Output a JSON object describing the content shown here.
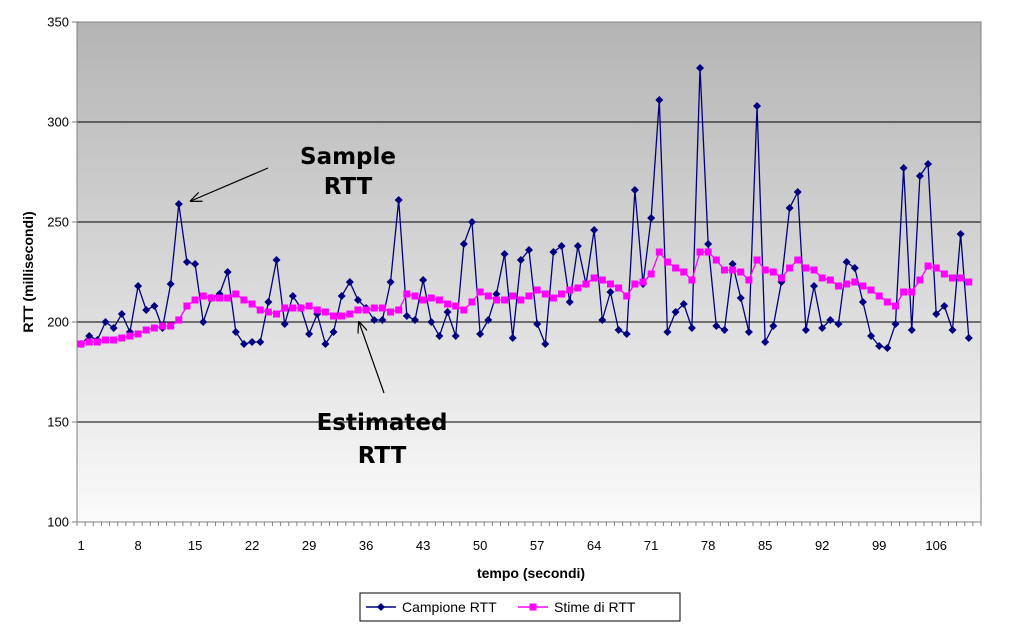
{
  "chart_data": {
    "type": "line",
    "xlabel": "tempo (secondi)",
    "ylabel": "RTT (millisecondi)",
    "ylim": [
      100,
      350
    ],
    "yticks": [
      100,
      150,
      200,
      250,
      300,
      350
    ],
    "xticks": [
      1,
      8,
      15,
      22,
      29,
      36,
      43,
      50,
      57,
      64,
      71,
      78,
      85,
      92,
      99,
      106
    ],
    "x_start": 1,
    "x_end": 111,
    "grid": "horizontal",
    "background": "gradient-gray",
    "legend_position": "bottom",
    "series": [
      {
        "name": "Campione RTT",
        "color": "#000080",
        "marker": "diamond",
        "values": [
          189,
          193,
          191,
          200,
          197,
          204,
          195,
          218,
          206,
          208,
          197,
          219,
          259,
          230,
          229,
          200,
          212,
          214,
          225,
          195,
          189,
          190,
          190,
          210,
          231,
          199,
          213,
          207,
          194,
          204,
          189,
          195,
          213,
          220,
          211,
          207,
          201,
          201,
          220,
          261,
          203,
          201,
          221,
          200,
          193,
          205,
          193,
          239,
          250,
          194,
          201,
          214,
          234,
          192,
          231,
          236,
          199,
          189,
          235,
          238,
          210,
          238,
          219,
          246,
          201,
          215,
          196,
          194,
          266,
          219,
          252,
          311,
          195,
          205,
          209,
          197,
          327,
          239,
          198,
          196,
          229,
          212,
          195,
          308,
          190,
          198,
          220,
          257,
          265,
          196,
          218,
          197,
          201,
          199,
          230,
          227,
          210,
          193,
          188,
          187,
          199,
          277,
          196,
          273,
          279,
          204,
          208,
          196,
          244,
          192
        ]
      },
      {
        "name": "Stime di RTT",
        "color": "#ff00ff",
        "marker": "square",
        "values": [
          189,
          190,
          190,
          191,
          191,
          192,
          193,
          194,
          196,
          197,
          198,
          198,
          201,
          208,
          211,
          213,
          212,
          212,
          212,
          214,
          211,
          209,
          206,
          205,
          204,
          207,
          207,
          207,
          208,
          206,
          205,
          203,
          203,
          204,
          206,
          206,
          207,
          207,
          205,
          206,
          214,
          213,
          211,
          212,
          211,
          209,
          208,
          206,
          210,
          215,
          213,
          211,
          211,
          213,
          211,
          213,
          216,
          214,
          212,
          214,
          216,
          217,
          219,
          222,
          221,
          219,
          217,
          213,
          219,
          220,
          224,
          235,
          230,
          227,
          225,
          221,
          235,
          235,
          231,
          226,
          226,
          225,
          221,
          231,
          226,
          225,
          222,
          227,
          231,
          227,
          226,
          222,
          221,
          218,
          219,
          220,
          218,
          216,
          213,
          210,
          208,
          215,
          215,
          221,
          228,
          227,
          224,
          222,
          222,
          220
        ]
      }
    ],
    "annotations": [
      {
        "lines": [
          "Sample",
          "RTT"
        ],
        "target": {
          "x": 13,
          "y": 259
        }
      },
      {
        "lines": [
          "Estimated",
          "RTT"
        ],
        "target": {
          "x": 35,
          "y": 204
        }
      }
    ]
  }
}
